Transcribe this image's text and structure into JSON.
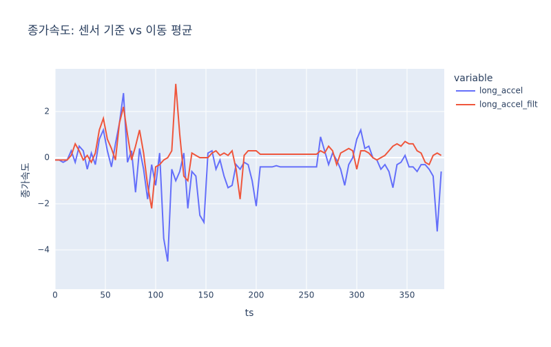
{
  "chart_data": {
    "type": "line",
    "title": "종가속도: 센서 기준 vs 이동 평균",
    "x_label": "ts",
    "y_label": "종가속도",
    "legend_title": "variable",
    "x": [
      0,
      4,
      8,
      12,
      16,
      20,
      24,
      28,
      32,
      36,
      40,
      44,
      48,
      52,
      56,
      60,
      64,
      68,
      72,
      76,
      80,
      84,
      88,
      92,
      96,
      100,
      104,
      108,
      112,
      116,
      120,
      124,
      128,
      132,
      136,
      140,
      144,
      148,
      152,
      156,
      160,
      164,
      168,
      172,
      176,
      180,
      184,
      188,
      192,
      196,
      200,
      204,
      208,
      212,
      216,
      220,
      224,
      228,
      232,
      236,
      240,
      244,
      248,
      252,
      256,
      260,
      264,
      268,
      272,
      276,
      280,
      284,
      288,
      292,
      296,
      300,
      304,
      308,
      312,
      316,
      320,
      324,
      328,
      332,
      336,
      340,
      344,
      348,
      352,
      356,
      360,
      364,
      368,
      372,
      376,
      380,
      384
    ],
    "series": [
      {
        "name": "long_accel",
        "color": "#636efa",
        "values": [
          -0.1,
          -0.1,
          -0.2,
          -0.1,
          0.3,
          -0.2,
          0.5,
          0.3,
          -0.5,
          0.2,
          -0.3,
          0.8,
          1.2,
          0.3,
          -0.4,
          0.6,
          1.5,
          2.8,
          -0.2,
          0.3,
          -1.5,
          0.4,
          -0.5,
          -1.8,
          -0.3,
          -1.2,
          0.2,
          -3.5,
          -4.5,
          -0.5,
          -1.0,
          -0.6,
          0.2,
          -2.2,
          -0.6,
          -0.8,
          -2.5,
          -2.8,
          0.2,
          0.3,
          -0.5,
          -0.1,
          -0.8,
          -1.3,
          -1.2,
          -0.3,
          -0.5,
          -0.2,
          -0.3,
          -1.0,
          -2.1,
          -0.4,
          -0.4,
          -0.4,
          -0.4,
          -0.35,
          -0.4,
          -0.4,
          -0.4,
          -0.4,
          -0.4,
          -0.4,
          -0.4,
          -0.4,
          -0.4,
          -0.4,
          0.9,
          0.3,
          -0.3,
          0.2,
          -0.1,
          -0.5,
          -1.2,
          -0.3,
          0.0,
          0.8,
          1.2,
          0.4,
          0.5,
          0.0,
          -0.1,
          -0.5,
          -0.3,
          -0.6,
          -1.3,
          -0.3,
          -0.2,
          0.1,
          -0.4,
          -0.4,
          -0.6,
          -0.3,
          -0.3,
          -0.5,
          -0.8,
          -3.2,
          -0.6
        ]
      },
      {
        "name": "long_accel_filt",
        "color": "#EF553B",
        "values": [
          -0.1,
          -0.1,
          -0.1,
          -0.1,
          0.1,
          0.6,
          0.3,
          -0.1,
          0.1,
          -0.2,
          0.2,
          1.2,
          1.7,
          0.8,
          0.4,
          -0.1,
          1.5,
          2.2,
          1.0,
          -0.1,
          0.5,
          1.2,
          0.2,
          -1.2,
          -2.2,
          -0.4,
          -0.3,
          -0.1,
          0.0,
          0.3,
          3.2,
          1.0,
          -0.8,
          -1.0,
          0.2,
          0.1,
          0.0,
          0.0,
          0.0,
          0.2,
          0.3,
          0.1,
          0.2,
          0.1,
          0.3,
          -0.5,
          -1.8,
          0.1,
          0.3,
          0.3,
          0.3,
          0.15,
          0.15,
          0.15,
          0.15,
          0.15,
          0.15,
          0.15,
          0.15,
          0.15,
          0.15,
          0.15,
          0.15,
          0.15,
          0.15,
          0.15,
          0.3,
          0.2,
          0.5,
          0.3,
          -0.3,
          0.2,
          0.3,
          0.4,
          0.3,
          -0.5,
          0.3,
          0.3,
          0.2,
          0.0,
          -0.1,
          0.0,
          0.1,
          0.3,
          0.5,
          0.6,
          0.5,
          0.7,
          0.6,
          0.6,
          0.3,
          0.2,
          -0.2,
          -0.3,
          0.1,
          0.2,
          0.1
        ]
      }
    ],
    "xlim": [
      0,
      387
    ],
    "ylim": [
      -5.7,
      3.85
    ],
    "xticks": [
      0,
      50,
      100,
      150,
      200,
      250,
      300,
      350
    ],
    "yticks": [
      {
        "value": -4,
        "label": "−4"
      },
      {
        "value": -2,
        "label": "−2"
      },
      0,
      2
    ],
    "grid": true,
    "background": "#e5ecf6"
  }
}
